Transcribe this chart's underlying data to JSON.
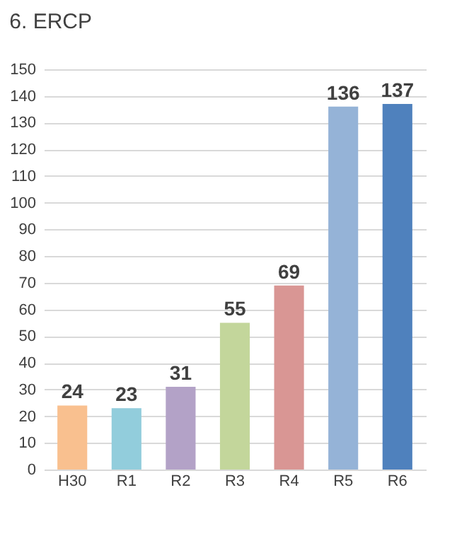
{
  "chart_data": {
    "type": "bar",
    "title": "6. ERCP",
    "categories": [
      "H30",
      "R1",
      "R2",
      "R3",
      "R4",
      "R5",
      "R6"
    ],
    "values": [
      24,
      23,
      31,
      55,
      69,
      136,
      137
    ],
    "colors": [
      "#f9c08f",
      "#92cddc",
      "#b3a2c7",
      "#c3d69b",
      "#d99694",
      "#95b3d7",
      "#4f81bd"
    ],
    "ylim": [
      0,
      150
    ],
    "yticks": [
      0,
      10,
      20,
      30,
      40,
      50,
      60,
      70,
      80,
      90,
      100,
      110,
      120,
      130,
      140,
      150
    ],
    "grid": "y",
    "data_labels": true
  }
}
